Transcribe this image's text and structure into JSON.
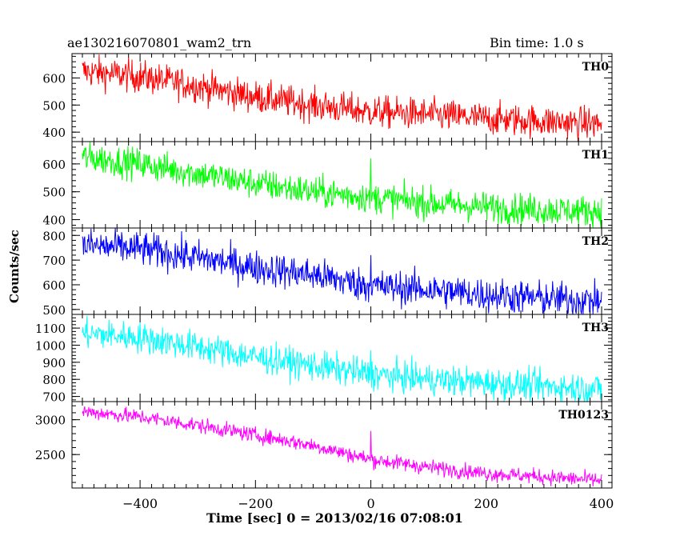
{
  "header": {
    "obs_id": "ae130216070801_wam2_trn",
    "bin_time": "Bin time: 1.0 s"
  },
  "axes": {
    "xlabel": "Time [sec] 0 = 2013/02/16 07:08:01",
    "ylabel": "Counts/sec"
  },
  "chart_data": {
    "type": "line",
    "x_range": [
      -500,
      400
    ],
    "x_ticks": [
      -400,
      -200,
      0,
      200,
      400
    ],
    "grid": false,
    "panels": [
      {
        "name": "TH0",
        "color": "#ff0000",
        "ylim": [
          365,
          690
        ],
        "yticks": [
          400,
          500,
          600
        ],
        "trend": [
          [
            -500,
            625
          ],
          [
            -400,
            605
          ],
          [
            -300,
            570
          ],
          [
            -200,
            530
          ],
          [
            -100,
            500
          ],
          [
            0,
            475
          ],
          [
            100,
            465
          ],
          [
            200,
            450
          ],
          [
            300,
            440
          ],
          [
            400,
            430
          ]
        ],
        "noise": 30,
        "spike": null
      },
      {
        "name": "TH1",
        "color": "#00ff00",
        "ylim": [
          370,
          680
        ],
        "yticks": [
          400,
          500,
          600
        ],
        "trend": [
          [
            -500,
            625
          ],
          [
            -400,
            600
          ],
          [
            -300,
            565
          ],
          [
            -200,
            530
          ],
          [
            -100,
            500
          ],
          [
            0,
            480
          ],
          [
            100,
            460
          ],
          [
            200,
            445
          ],
          [
            300,
            435
          ],
          [
            400,
            430
          ]
        ],
        "noise": 28,
        "spike": [
          0,
          620
        ]
      },
      {
        "name": "TH2",
        "color": "#0000ff",
        "ylim": [
          480,
          830
        ],
        "yticks": [
          500,
          600,
          700,
          800
        ],
        "trend": [
          [
            -500,
            760
          ],
          [
            -400,
            745
          ],
          [
            -300,
            710
          ],
          [
            -200,
            670
          ],
          [
            -100,
            640
          ],
          [
            0,
            595
          ],
          [
            100,
            580
          ],
          [
            200,
            560
          ],
          [
            300,
            545
          ],
          [
            400,
            535
          ]
        ],
        "noise": 35,
        "spike": [
          0,
          720
        ]
      },
      {
        "name": "TH3",
        "color": "#00ffff",
        "ylim": [
          670,
          1180
        ],
        "yticks": [
          700,
          800,
          900,
          1000,
          1100
        ],
        "trend": [
          [
            -500,
            1070
          ],
          [
            -400,
            1045
          ],
          [
            -300,
            990
          ],
          [
            -200,
            930
          ],
          [
            -100,
            880
          ],
          [
            0,
            830
          ],
          [
            100,
            800
          ],
          [
            200,
            780
          ],
          [
            300,
            760
          ],
          [
            400,
            745
          ]
        ],
        "noise": 45,
        "spike": [
          0,
          970
        ]
      },
      {
        "name": "TH0123",
        "color": "#ff00ff",
        "ylim": [
          2020,
          3260
        ],
        "yticks": [
          2500,
          3000
        ],
        "trend": [
          [
            -500,
            3120
          ],
          [
            -400,
            3040
          ],
          [
            -300,
            2920
          ],
          [
            -200,
            2780
          ],
          [
            -100,
            2630
          ],
          [
            0,
            2430
          ],
          [
            100,
            2320
          ],
          [
            200,
            2230
          ],
          [
            300,
            2180
          ],
          [
            400,
            2130
          ]
        ],
        "noise": 55,
        "spike": [
          0,
          2840
        ]
      }
    ]
  }
}
